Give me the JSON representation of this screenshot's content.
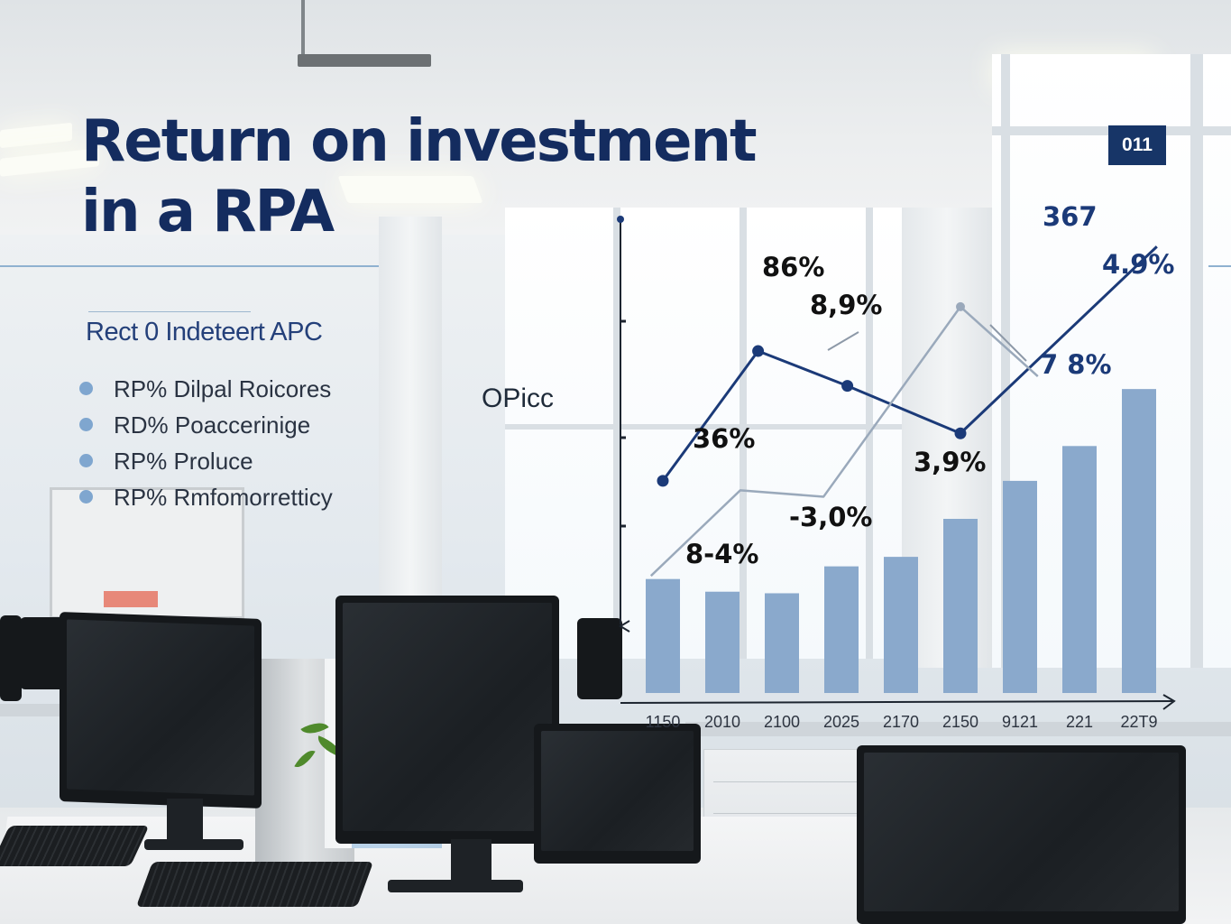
{
  "title_lines": [
    "Return on investment",
    "in a RPA"
  ],
  "badge": "011",
  "subheading": "Rect 0 Indeteert APC",
  "bullets": [
    "RP% Dilpal Roicores",
    "RD% Poaccerinige",
    "RP% Proluce",
    "RP% Rmfomorretticy"
  ],
  "side_label": "OPicc",
  "colors": {
    "title": "#142c5f",
    "bar": "#8aa9cc",
    "line_dark": "#1b3a78",
    "line_light": "#9aa9bb",
    "bullet_dot": "#7fa6cf",
    "badge_bg": "#173567"
  },
  "chart_data": {
    "type": "bar",
    "categories": [
      "1150",
      "2010",
      "2100",
      "2025",
      "2170",
      "2150",
      "9121",
      "221",
      "22T9"
    ],
    "values": [
      36,
      32,
      31.5,
      40,
      43,
      55,
      67,
      78,
      96
    ],
    "ylim": [
      0,
      112
    ],
    "series_lines": [
      {
        "name": "",
        "style": "dark",
        "x": [
          0,
          1.6,
          3.1,
          5,
          8.3
        ],
        "y": [
          67,
          108,
          97,
          82,
          141
        ]
      },
      {
        "name": "",
        "style": "light",
        "x": [
          -0.2,
          1.3,
          2.7,
          5,
          6.3
        ],
        "y": [
          37,
          64,
          62,
          122,
          100
        ]
      }
    ],
    "annotations": [
      {
        "text": "86%",
        "color": "#111111"
      },
      {
        "text": "8,9%",
        "color": "#111111"
      },
      {
        "text": "36%",
        "color": "#111111"
      },
      {
        "text": "-3,0%",
        "color": "#111111"
      },
      {
        "text": "8-4%",
        "color": "#111111"
      },
      {
        "text": "3,9%",
        "color": "#111111"
      },
      {
        "text": "367",
        "color": "#1b3a78"
      },
      {
        "text": "4.9%",
        "color": "#1b3a78"
      },
      {
        "text": "7 8%",
        "color": "#1b3a78"
      }
    ],
    "xlabel": "",
    "ylabel": ""
  }
}
